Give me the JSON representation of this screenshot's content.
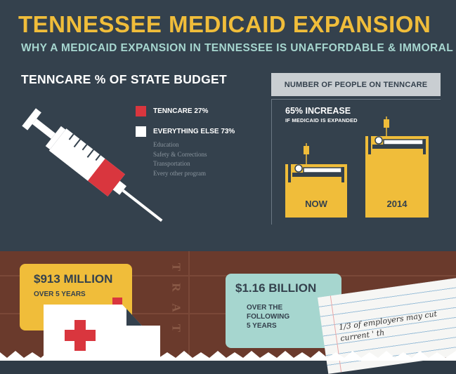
{
  "header": {
    "title": "TENNESSEE MEDICAID EXPANSION",
    "subtitle": "WHY A MEDICAID EXPANSION IN TENNESSEE IS UNAFFORDABLE & IMMORAL"
  },
  "budget": {
    "title": "TENNCARE % OF STATE BUDGET",
    "legend": [
      {
        "label": "TENNCARE 27%",
        "color": "#d9363e"
      },
      {
        "label": "EVERYTHING ELSE 73%",
        "color": "#ffffff"
      }
    ],
    "everything_else_items": [
      "Education",
      "Safety & Corrections",
      "Transportation",
      "Every other program"
    ],
    "tenncare_percent": 27,
    "everything_else_percent": 73,
    "icon": "syringe-icon"
  },
  "people": {
    "header": "NUMBER OF PEOPLE ON TENNCARE",
    "increase": "65% INCREASE",
    "increase_note": "IF MEDICAID IS EXPANDED",
    "now_label": "NOW",
    "future_label": "2014",
    "icon": "hospital-bed-icon"
  },
  "costs": {
    "card1_amount": "$913 MILLION",
    "card1_period": "OVER 5 YEARS",
    "card2_amount": "$1.16 BILLION",
    "card2_period_lines": [
      "OVER THE",
      "FOLLOWING",
      "5 YEARS"
    ],
    "start_letters": [
      "T",
      "R",
      "A",
      "T"
    ],
    "note_lines": [
      "1/3 of employers may cut",
      "current ' th"
    ],
    "icon": "ambulance-icon"
  },
  "colors": {
    "background": "#34414d",
    "yellow": "#f0bd3a",
    "teal": "#a6d6cf",
    "red": "#d9363e",
    "brown": "#6a3a2c"
  }
}
